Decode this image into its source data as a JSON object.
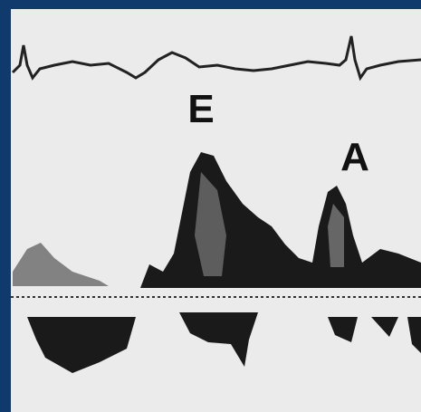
{
  "labels": {
    "e_wave": "E",
    "a_wave": "A"
  }
}
